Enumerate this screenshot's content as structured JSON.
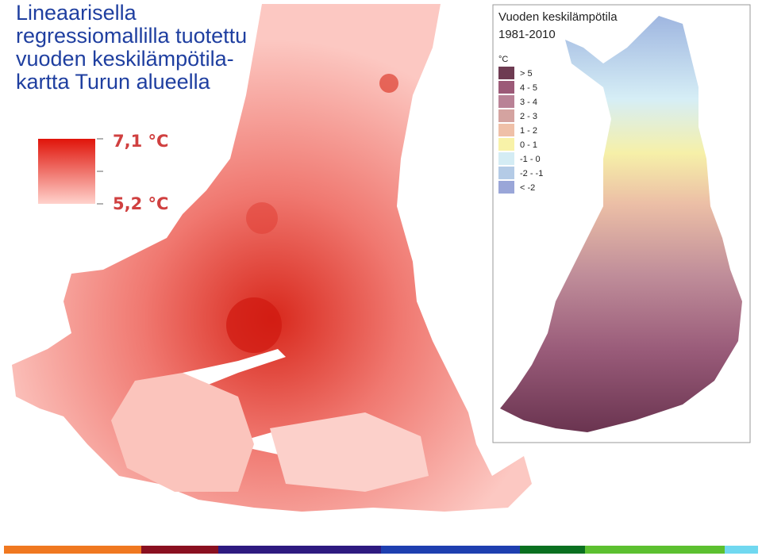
{
  "title_lines": [
    "Lineaarisella",
    "regressiomallilla tuotettu",
    "vuoden keskilämpötila-",
    "kartta Turun alueella"
  ],
  "turku_legend": {
    "max_label": "7,1 °C",
    "min_label": "5,2 °C"
  },
  "finland_inset": {
    "title": "Vuoden keskilämpötila",
    "period": "1981-2010",
    "unit": "°C",
    "legend": [
      {
        "label": "> 5",
        "color": "#6e3b52"
      },
      {
        "label": "4 - 5",
        "color": "#9c5a78"
      },
      {
        "label": "3 - 4",
        "color": "#b98296"
      },
      {
        "label": "2 - 3",
        "color": "#d4a3a0"
      },
      {
        "label": "1 - 2",
        "color": "#efc0a8"
      },
      {
        "label": "0 - 1",
        "color": "#f8f2a8"
      },
      {
        "label": "-1 - 0",
        "color": "#d4ecf4"
      },
      {
        "label": "-2 - -1",
        "color": "#b4cbe6"
      },
      {
        "label": "< -2",
        "color": "#9aa6d8"
      }
    ]
  }
}
